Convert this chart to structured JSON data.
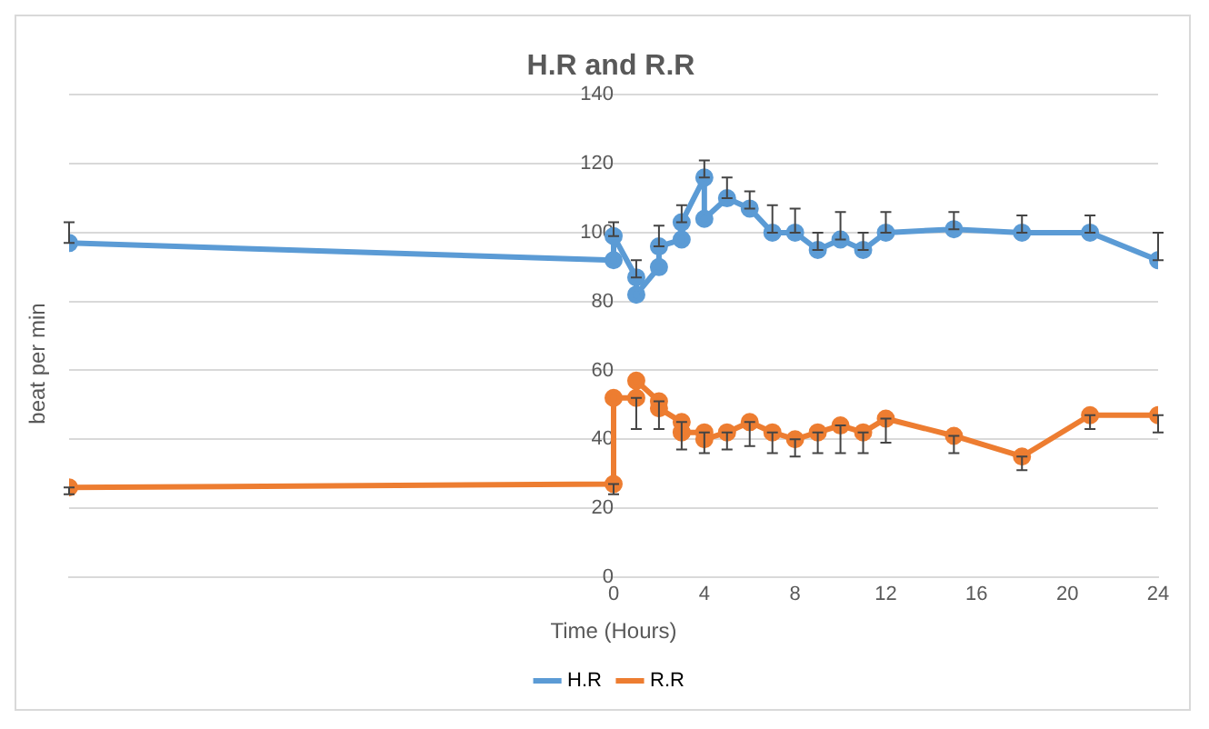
{
  "chart_data": {
    "type": "line",
    "title": "H.R and R.R",
    "xlabel": "Time (Hours)",
    "ylabel": "beat per min",
    "xlim": [
      -24,
      24
    ],
    "xticks": [
      0,
      4,
      8,
      12,
      16,
      20,
      24
    ],
    "ylim": [
      0,
      140
    ],
    "yticks": [
      0,
      20,
      40,
      60,
      80,
      100,
      120,
      140
    ],
    "grid": "y",
    "legend": "bottom",
    "marker": "circle",
    "line_style": "solid",
    "series": [
      {
        "name": "H.R",
        "color": "#5b9bd5",
        "x": [
          -24,
          0,
          0,
          1,
          1,
          2,
          2,
          3,
          3,
          4,
          4,
          5,
          6,
          7,
          8,
          9,
          10,
          11,
          12,
          15,
          18,
          21,
          24
        ],
        "values": [
          97,
          92,
          99,
          87,
          82,
          90,
          96,
          98,
          103,
          116,
          104,
          110,
          107,
          100,
          100,
          95,
          98,
          95,
          100,
          101,
          100,
          100,
          92
        ],
        "errors": [
          [
            97,
            103
          ],
          null,
          [
            99,
            103
          ],
          [
            87,
            92
          ],
          null,
          null,
          [
            96,
            102
          ],
          null,
          [
            103,
            108
          ],
          [
            116,
            121
          ],
          null,
          [
            110,
            116
          ],
          [
            107,
            112
          ],
          [
            100,
            108
          ],
          [
            100,
            107
          ],
          [
            95,
            100
          ],
          [
            98,
            106
          ],
          [
            95,
            100
          ],
          [
            100,
            106
          ],
          [
            101,
            106
          ],
          [
            100,
            105
          ],
          [
            100,
            105
          ],
          [
            92,
            100
          ]
        ]
      },
      {
        "name": "R.R",
        "color": "#ed7d31",
        "x": [
          -24,
          0,
          0,
          1,
          1,
          2,
          2,
          3,
          3,
          4,
          4,
          5,
          6,
          7,
          8,
          9,
          10,
          11,
          12,
          15,
          18,
          21,
          24
        ],
        "values": [
          26,
          27,
          52,
          52,
          57,
          51,
          49,
          45,
          42,
          42,
          40,
          42,
          45,
          42,
          40,
          42,
          44,
          42,
          46,
          41,
          35,
          47,
          47
        ],
        "errors": [
          [
            24,
            26
          ],
          [
            24,
            27
          ],
          null,
          [
            43,
            52
          ],
          null,
          [
            43,
            51
          ],
          null,
          [
            37,
            45
          ],
          null,
          [
            36,
            42
          ],
          null,
          [
            37,
            42
          ],
          [
            38,
            45
          ],
          [
            36,
            42
          ],
          [
            35,
            40
          ],
          [
            36,
            42
          ],
          [
            36,
            44
          ],
          [
            36,
            42
          ],
          [
            39,
            46
          ],
          [
            36,
            41
          ],
          [
            31,
            35
          ],
          [
            43,
            47
          ],
          [
            42,
            47
          ]
        ]
      }
    ]
  }
}
